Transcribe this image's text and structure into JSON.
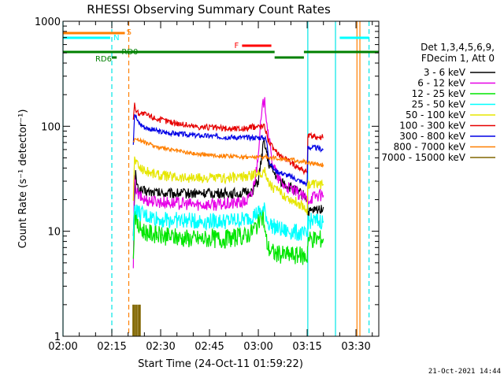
{
  "chart_data": {
    "type": "line",
    "title": "RHESSI Observing Summary Count Rates",
    "xlabel": "Start Time (24-Oct-11 01:59:22)",
    "ylabel": "Count Rate (s⁻¹ detector⁻¹)",
    "y_scale": "log",
    "ylim": [
      1,
      1000
    ],
    "x_range_minutes": [
      0,
      97
    ],
    "x_ticks": [
      {
        "value": 0,
        "label": "02:00"
      },
      {
        "value": 15,
        "label": "02:15"
      },
      {
        "value": 30,
        "label": "02:30"
      },
      {
        "value": 45,
        "label": "02:45"
      },
      {
        "value": 60,
        "label": "03:00"
      },
      {
        "value": 75,
        "label": "03:15"
      },
      {
        "value": 90,
        "label": "03:30"
      }
    ],
    "y_ticks": [
      {
        "value": 1,
        "label": "1"
      },
      {
        "value": 10,
        "label": "10"
      },
      {
        "value": 100,
        "label": "100"
      },
      {
        "value": 1000,
        "label": "1000"
      }
    ],
    "legend": {
      "header": [
        "Det 1,3,4,5,6,9,",
        "FDecim 1, Att 0"
      ],
      "position": "right"
    },
    "series": [
      {
        "name": "3 - 6 keV",
        "color": "#000000",
        "x": [
          21.6,
          22.3,
          23,
          25,
          30,
          40,
          50,
          56,
          58,
          60,
          61.2,
          61.8,
          62.2,
          63,
          65,
          67,
          69,
          71,
          73,
          75,
          75.2,
          78,
          80
        ],
        "y": [
          10,
          35,
          25,
          24,
          23,
          23,
          23,
          23,
          24,
          30,
          55,
          75,
          65,
          45,
          35,
          30,
          27,
          25,
          23,
          21,
          15,
          16,
          17
        ]
      },
      {
        "name": "6 - 12 keV",
        "color": "#e600e6",
        "x": [
          21.6,
          21.9,
          23,
          25,
          30,
          40,
          50,
          56,
          58,
          59.5,
          60.5,
          61.3,
          61.8,
          62.3,
          63,
          64,
          65,
          66,
          68,
          70,
          73,
          75,
          78,
          80
        ],
        "y": [
          4,
          30,
          22,
          20,
          19,
          18,
          18,
          19,
          22,
          40,
          90,
          150,
          180,
          140,
          90,
          50,
          40,
          32,
          27,
          25,
          22,
          20,
          22,
          22
        ]
      },
      {
        "name": "12 - 25 keV",
        "color": "#00e600",
        "x": [
          21.6,
          22,
          23,
          25,
          30,
          40,
          50,
          56,
          58,
          60,
          61.5,
          62.2,
          63,
          64,
          65,
          66,
          67,
          70,
          73,
          75,
          75.2,
          78,
          80
        ],
        "y": [
          5,
          16,
          11,
          10,
          9,
          8.5,
          8.5,
          9,
          10,
          12,
          14,
          9,
          7,
          6.5,
          6.2,
          6,
          6,
          6,
          5.8,
          5.7,
          8.5,
          8.5,
          8.5
        ]
      },
      {
        "name": "25 - 50 keV",
        "color": "#00ffff",
        "x": [
          21.6,
          22,
          23,
          25,
          30,
          40,
          50,
          56,
          58,
          60,
          62,
          63,
          65,
          68,
          70,
          73,
          75,
          75.2,
          78,
          80
        ],
        "y": [
          8,
          18,
          15,
          14,
          13,
          12.5,
          12.5,
          13,
          14,
          15,
          16,
          12,
          11,
          10,
          10,
          9.5,
          9,
          12.5,
          12.5,
          12.5
        ]
      },
      {
        "name": "50 - 100 keV",
        "color": "#e6e600",
        "x": [
          21.6,
          22,
          23,
          25,
          30,
          40,
          50,
          56,
          58,
          60,
          62,
          63,
          65,
          68,
          70,
          73,
          75,
          75.2,
          78,
          80
        ],
        "y": [
          20,
          50,
          42,
          38,
          34,
          32,
          32,
          33,
          34,
          36,
          37,
          30,
          25,
          22,
          20,
          18,
          16,
          28,
          28,
          28
        ]
      },
      {
        "name": "100 - 300 keV",
        "color": "#e60000",
        "x": [
          21.6,
          22,
          22.5,
          23,
          25,
          30,
          40,
          50,
          56,
          58,
          60,
          62,
          63,
          65,
          68,
          70,
          73,
          75,
          75.2,
          78,
          80
        ],
        "y": [
          120,
          160,
          140,
          135,
          130,
          115,
          100,
          95,
          95,
          98,
          100,
          100,
          75,
          58,
          50,
          45,
          40,
          36,
          80,
          80,
          78
        ]
      },
      {
        "name": "300 - 800 keV",
        "color": "#0000e6",
        "x": [
          21.6,
          22,
          23,
          25,
          30,
          40,
          50,
          56,
          58,
          60,
          62,
          62.5,
          63.5,
          65,
          68,
          70,
          73,
          75,
          75.2,
          78,
          80
        ],
        "y": [
          70,
          135,
          110,
          98,
          88,
          82,
          79,
          78,
          78,
          78,
          78,
          72,
          45,
          38,
          35,
          33,
          30,
          28,
          63,
          62,
          60
        ]
      },
      {
        "name": "800 - 7000 keV",
        "color": "#ff7f00",
        "x": [
          21.6,
          22,
          23,
          25,
          30,
          40,
          50,
          56,
          58,
          60,
          62,
          65,
          70,
          75,
          80
        ],
        "y": [
          70,
          78,
          75,
          70,
          62,
          55,
          52,
          51,
          51,
          51,
          51,
          50,
          48,
          45,
          43
        ]
      },
      {
        "name": "7000 - 15000 keV",
        "color": "#806600",
        "x": [
          21.5,
          21.8,
          22.2,
          22.6,
          23,
          23.4,
          23.7
        ],
        "y": [
          2,
          2,
          2,
          2,
          2,
          2,
          2
        ]
      }
    ],
    "markers": [
      {
        "label": "S",
        "color": "#ff7f00",
        "segments": [
          [
            0,
            19
          ]
        ]
      },
      {
        "label": "N",
        "color": "#00ffff",
        "segments": [
          [
            0,
            14.5
          ],
          [
            85,
            94
          ]
        ]
      },
      {
        "label": "F",
        "color": "#ff0000",
        "segments": [
          [
            55,
            64
          ]
        ]
      },
      {
        "label": "RD0",
        "color": "#008000",
        "segments": [
          [
            0,
            65
          ],
          [
            74,
            97
          ]
        ]
      },
      {
        "label": "RD6",
        "color": "#008000",
        "segments": [
          [
            15,
            16.5
          ],
          [
            65,
            74
          ]
        ]
      }
    ],
    "vertical_lines": [
      {
        "x": 0,
        "color": "#00e6e6",
        "style": "solid"
      },
      {
        "x": 15,
        "color": "#00e6e6",
        "style": "dashed"
      },
      {
        "x": 20.2,
        "color": "#ff7f00",
        "style": "dashed"
      },
      {
        "x": 75.2,
        "color": "#00e6e6",
        "style": "solid"
      },
      {
        "x": 83.7,
        "color": "#00e6e6",
        "style": "solid"
      },
      {
        "x": 90.3,
        "color": "#ff7f00",
        "style": "solid"
      },
      {
        "x": 91.2,
        "color": "#ff7f00",
        "style": "solid"
      },
      {
        "x": 94,
        "color": "#00e6e6",
        "style": "dashed"
      }
    ]
  },
  "footer": {
    "timestamp": "21-Oct-2021 14:44"
  }
}
